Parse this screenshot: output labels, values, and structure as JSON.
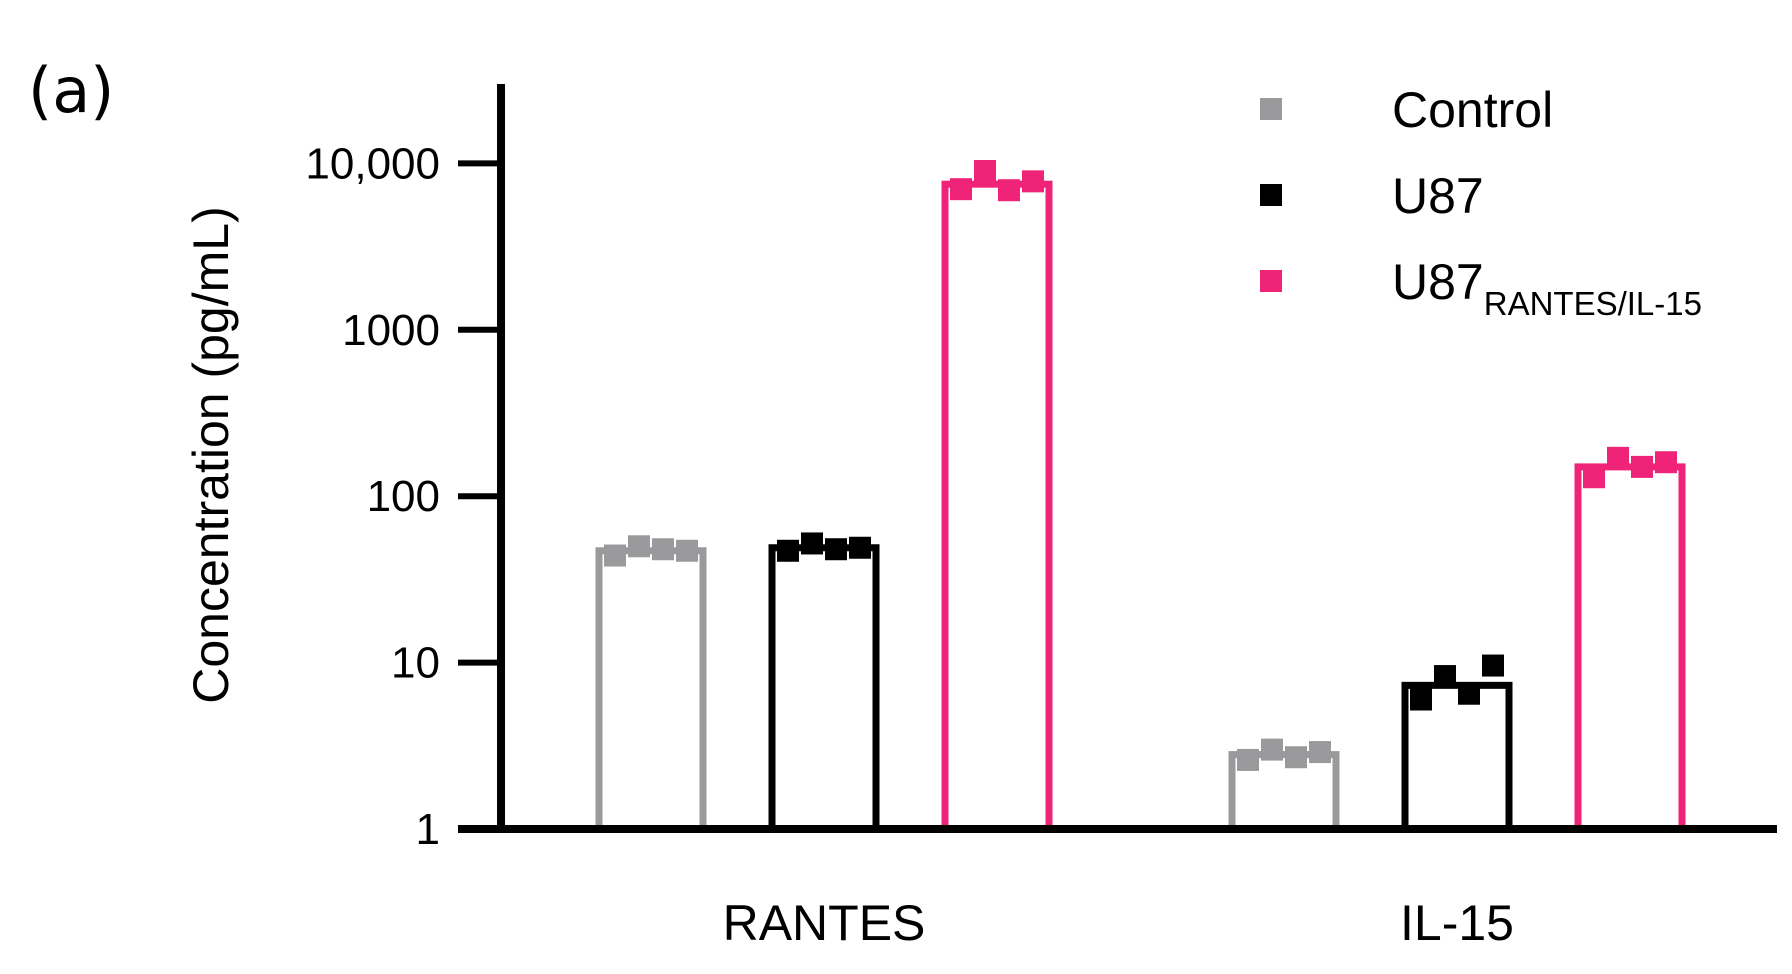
{
  "panel_label": "(a)",
  "chart_data": {
    "type": "bar",
    "categories": [
      "RANTES",
      "IL-15"
    ],
    "ylabel": "Concentration (pg/mL)",
    "yscale": "log",
    "ylim": [
      1,
      30000
    ],
    "yticks": [
      1,
      10,
      100,
      1000,
      10000
    ],
    "ytick_labels": [
      "1",
      "10",
      "100",
      "1000",
      "10,000"
    ],
    "grid": false,
    "legend_position": "top-right",
    "series": [
      {
        "name": "Control",
        "name_main": "Control",
        "name_sub": "",
        "color": "#9a9a9c",
        "values": [
          47,
          2.8
        ],
        "points": [
          [
            44,
            50,
            48,
            47
          ],
          [
            2.6,
            3.0,
            2.7,
            2.9
          ]
        ]
      },
      {
        "name": "U87",
        "name_main": "U87",
        "name_sub": "",
        "color": "#000000",
        "values": [
          49,
          7.3
        ],
        "points": [
          [
            47,
            52,
            48,
            49
          ],
          [
            6.0,
            8.3,
            6.5,
            9.6
          ]
        ]
      },
      {
        "name": "U87RANTES/IL-15",
        "name_main": "U87",
        "name_sub": "RANTES/IL-15",
        "color": "#ef2478",
        "values": [
          7500,
          150
        ],
        "points": [
          [
            7000,
            9000,
            6900,
            7800
          ],
          [
            130,
            170,
            150,
            160
          ]
        ]
      }
    ]
  }
}
